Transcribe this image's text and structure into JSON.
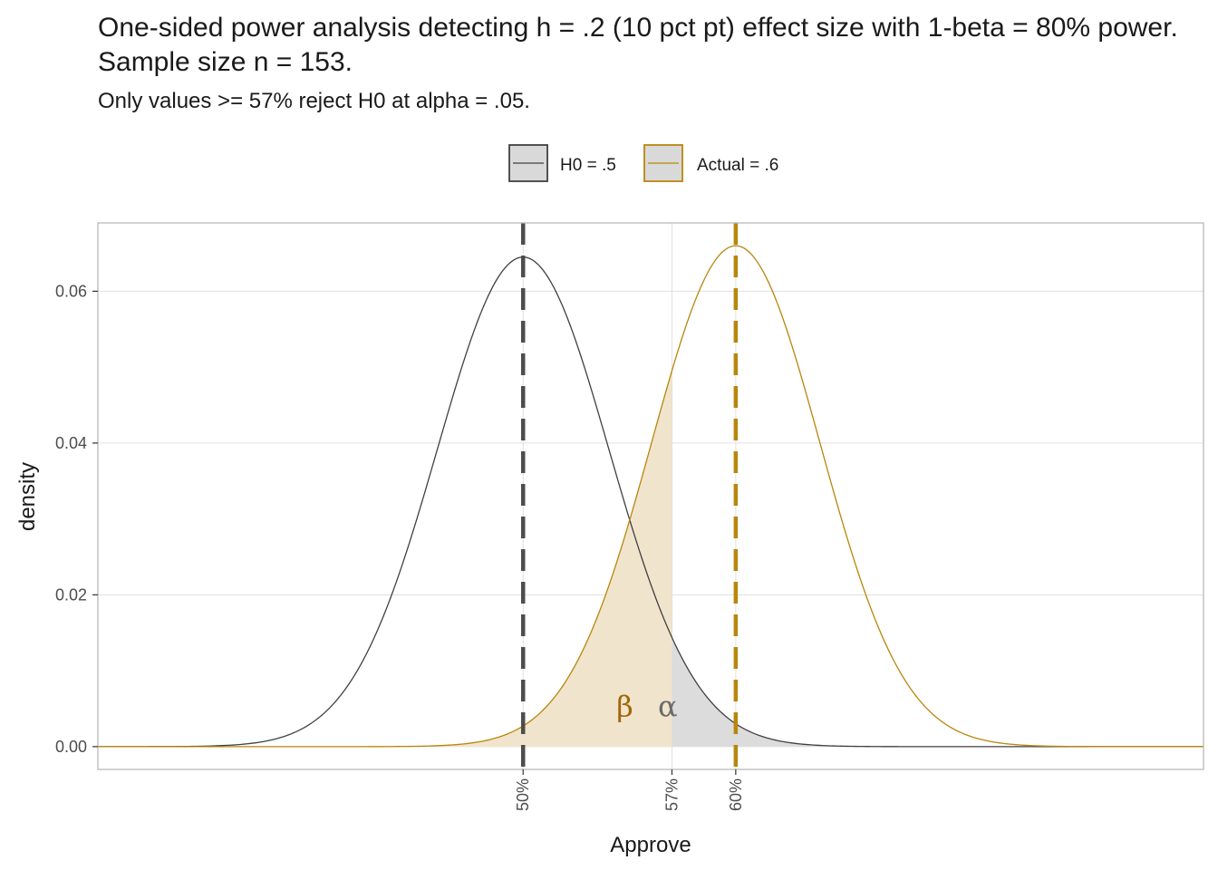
{
  "chart_data": {
    "type": "area",
    "title": "One-sided power analysis detecting h = .2 (10 pct pt) effect size with 1-beta = 80% power. Sample size n = 153.",
    "subtitle": "Only values >= 57% reject H0 at alpha = .05.",
    "xlabel": "Approve",
    "ylabel": "density",
    "xlim": [
      0.3,
      0.82
    ],
    "ylim": [
      -0.003,
      0.069
    ],
    "x_ticks": [
      {
        "value": 0.5,
        "label": "50%"
      },
      {
        "value": 0.57,
        "label": "57%"
      },
      {
        "value": 0.6,
        "label": "60%"
      }
    ],
    "y_ticks": [
      {
        "value": 0.0,
        "label": "0.00"
      },
      {
        "value": 0.02,
        "label": "0.02"
      },
      {
        "value": 0.04,
        "label": "0.04"
      },
      {
        "value": 0.06,
        "label": "0.06"
      }
    ],
    "grid": true,
    "legend_position": "top",
    "series": [
      {
        "name": "H0 = .5",
        "color": "#404040",
        "mean": 0.5,
        "peak": 0.0645,
        "sd": 0.0404
      },
      {
        "name": "Actual = .6",
        "color": "#b8860b",
        "mean": 0.6,
        "peak": 0.066,
        "sd": 0.0396
      }
    ],
    "critical_value": 0.57,
    "annotations": [
      {
        "label": "β",
        "x": 0.55,
        "y": 0.0052,
        "color": "#a0670a"
      },
      {
        "label": "α",
        "x": 0.6,
        "y": 0.0052,
        "color": "#6b6b6b"
      }
    ],
    "colors": {
      "h0_line": "#404040",
      "h0_vline": "#4d4d4d",
      "actual_line": "#b8860b",
      "actual_vline": "#b8860b",
      "beta_fill": "#f0e5cc",
      "alpha_fill": "#dcdcdc",
      "grid": "#e0e0e0",
      "panel_border": "#b3b3b3"
    }
  }
}
